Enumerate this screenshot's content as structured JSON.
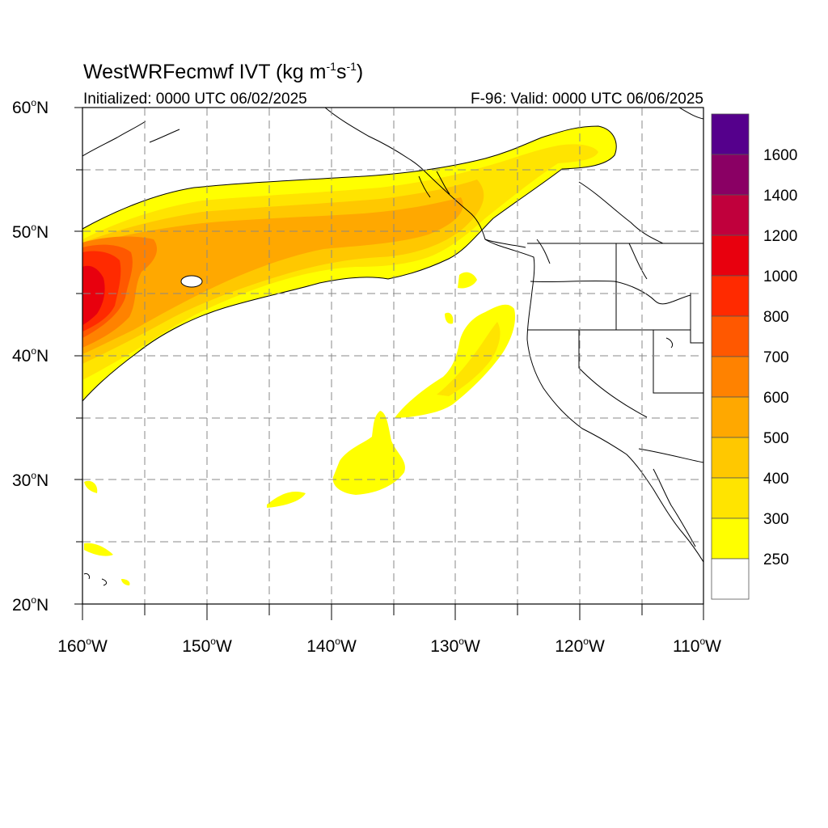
{
  "title_main": "WestWRFecmwf IVT (kg m",
  "title_sup1": "-1",
  "title_mid": "s",
  "title_sup2": "-1",
  "title_end": ")",
  "init_text": "Initialized: 0000 UTC 06/02/2025",
  "valid_text": "F-96: Valid: 0000 UTC 06/06/2025",
  "lat_labels": [
    {
      "num": "60",
      "deg": "o",
      "hem": "N"
    },
    {
      "num": "50",
      "deg": "o",
      "hem": "N"
    },
    {
      "num": "40",
      "deg": "o",
      "hem": "N"
    },
    {
      "num": "30",
      "deg": "o",
      "hem": "N"
    },
    {
      "num": "20",
      "deg": "o",
      "hem": "N"
    }
  ],
  "lon_labels": [
    {
      "num": "160",
      "deg": "o",
      "hem": "W"
    },
    {
      "num": "150",
      "deg": "o",
      "hem": "W"
    },
    {
      "num": "140",
      "deg": "o",
      "hem": "W"
    },
    {
      "num": "130",
      "deg": "o",
      "hem": "W"
    },
    {
      "num": "120",
      "deg": "o",
      "hem": "W"
    },
    {
      "num": "110",
      "deg": "o",
      "hem": "W"
    }
  ],
  "colorbar": {
    "labels": [
      "1600",
      "1400",
      "1200",
      "1000",
      "800",
      "700",
      "600",
      "500",
      "400",
      "300",
      "250"
    ],
    "colors": [
      "#55008c",
      "#8a0064",
      "#c0003c",
      "#e8000e",
      "#ff2a00",
      "#ff5800",
      "#ff8200",
      "#ffa800",
      "#ffc800",
      "#ffe400",
      "#ffff00",
      "#ffffff"
    ]
  },
  "ivt_colors": {
    "c250": "#ffff00",
    "c300": "#ffe400",
    "c400": "#ffc800",
    "c500": "#ffa800",
    "c600": "#ff8200",
    "c700": "#ff5800",
    "c800": "#ff2a00",
    "c1000": "#e8000e"
  }
}
